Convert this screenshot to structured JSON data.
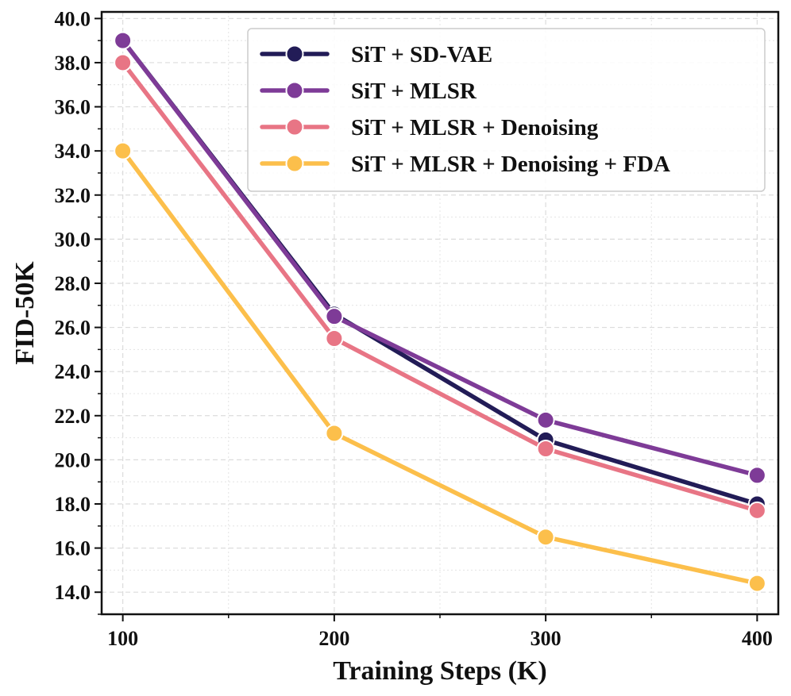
{
  "chart_data": {
    "type": "line",
    "title": "",
    "xlabel": "Training Steps (K)",
    "ylabel": "FID-50K",
    "x": [
      100,
      200,
      300,
      400
    ],
    "xlim": [
      90,
      410
    ],
    "ylim": [
      13.0,
      40.3
    ],
    "xticks": [
      100,
      200,
      300,
      400
    ],
    "xtick_labels": [
      "100",
      "200",
      "300",
      "400"
    ],
    "yticks": [
      14,
      16,
      18,
      20,
      22,
      24,
      26,
      28,
      30,
      32,
      34,
      36,
      38,
      40
    ],
    "ytick_labels": [
      "14.0",
      "16.0",
      "18.0",
      "20.0",
      "22.0",
      "24.0",
      "26.0",
      "28.0",
      "30.0",
      "32.0",
      "34.0",
      "36.0",
      "38.0",
      "40.0"
    ],
    "grid": true,
    "legend_position": "top-right",
    "series": [
      {
        "name": "SiT + SD-VAE",
        "color": "#221c57",
        "values": [
          39.0,
          26.6,
          20.9,
          18.0
        ]
      },
      {
        "name": "SiT + MLSR",
        "color": "#7e3b97",
        "values": [
          39.0,
          26.5,
          21.8,
          19.3
        ]
      },
      {
        "name": "SiT + MLSR + Denoising",
        "color": "#e87585",
        "values": [
          38.0,
          25.5,
          20.5,
          17.7
        ]
      },
      {
        "name": "SiT + MLSR + Denoising + FDA",
        "color": "#fcbf4b",
        "values": [
          34.0,
          21.2,
          16.5,
          14.4
        ]
      }
    ]
  }
}
